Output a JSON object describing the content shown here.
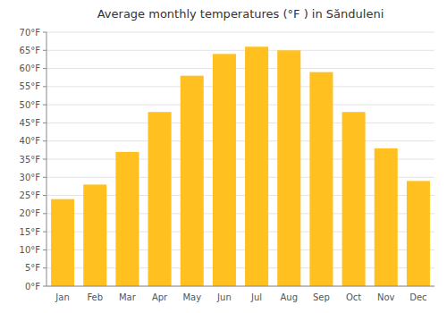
{
  "chart_data": {
    "type": "bar",
    "title": "Average monthly temperatures (°F ) in Sănduleni",
    "categories": [
      "Jan",
      "Feb",
      "Mar",
      "Apr",
      "May",
      "Jun",
      "Jul",
      "Aug",
      "Sep",
      "Oct",
      "Nov",
      "Dec"
    ],
    "values": [
      24,
      28,
      37,
      48,
      58,
      64,
      66,
      65,
      59,
      48,
      38,
      29
    ],
    "color": "#FFC020",
    "ylim": [
      0,
      70
    ],
    "yticks": [
      {
        "value": 0,
        "label": "0°F"
      },
      {
        "value": 5,
        "label": "5°F"
      },
      {
        "value": 10,
        "label": "10°F"
      },
      {
        "value": 15,
        "label": "15°F"
      },
      {
        "value": 20,
        "label": "20°F"
      },
      {
        "value": 25,
        "label": "25°F"
      },
      {
        "value": 30,
        "label": "30°F"
      },
      {
        "value": 35,
        "label": "35°F"
      },
      {
        "value": 40,
        "label": "40°F"
      },
      {
        "value": 45,
        "label": "45°F"
      },
      {
        "value": 50,
        "label": "50°F"
      },
      {
        "value": 55,
        "label": "55°F"
      },
      {
        "value": 60,
        "label": "60°F"
      },
      {
        "value": 65,
        "label": "65°F"
      },
      {
        "value": 70,
        "label": "70°F"
      }
    ],
    "grid": true
  }
}
